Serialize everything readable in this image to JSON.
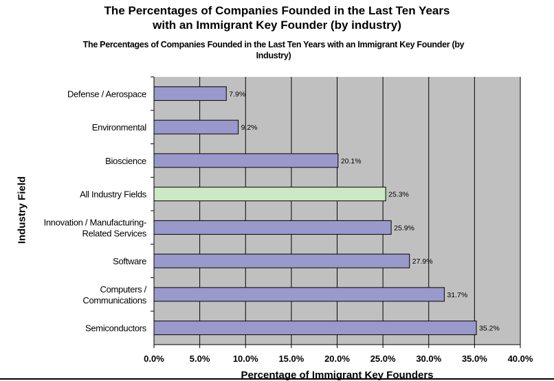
{
  "header": {
    "title_line1": "The Percentages of Companies Founded in the Last Ten Years",
    "title_line2": "with an Immigrant Key Founder (by industry)"
  },
  "chart_data": {
    "type": "bar",
    "orientation": "horizontal",
    "title": "The Percentages of Companies Founded in the Last Ten Years with an Immigrant Key Founder (by Industry)",
    "xlabel": "Percentage of Immigrant Key Founders",
    "ylabel": "Industry Field",
    "xlim": [
      0,
      40
    ],
    "x_ticks": [
      "0.0%",
      "5.0%",
      "10.0%",
      "15.0%",
      "20.0%",
      "25.0%",
      "30.0%",
      "35.0%",
      "40.0%"
    ],
    "grid": true,
    "categories": [
      "Defense / Aerospace",
      "Environmental",
      "Bioscience",
      "All Industry Fields",
      "Innovation / Manufacturing-Related Services",
      "Software",
      "Computers / Communications",
      "Semiconductors"
    ],
    "category_lines": [
      [
        "Defense / Aerospace"
      ],
      [
        "Environmental"
      ],
      [
        "Bioscience"
      ],
      [
        "All Industry Fields"
      ],
      [
        "Innovation / Manufacturing-",
        "Related Services"
      ],
      [
        "Software"
      ],
      [
        "Computers /",
        "Communications"
      ],
      [
        "Semiconductors"
      ]
    ],
    "values": [
      7.9,
      9.2,
      20.1,
      25.3,
      25.9,
      27.9,
      31.7,
      35.2
    ],
    "data_labels": [
      "7.9%",
      "9.2%",
      "20.1%",
      "25.3%",
      "25.9%",
      "27.9%",
      "31.7%",
      "35.2%"
    ],
    "colors": {
      "bar": "#9999cc",
      "highlight_bar": "#cce8c4",
      "plot_bg": "#c0c0c0",
      "gridline": "#000000"
    },
    "highlight_index": 3
  }
}
